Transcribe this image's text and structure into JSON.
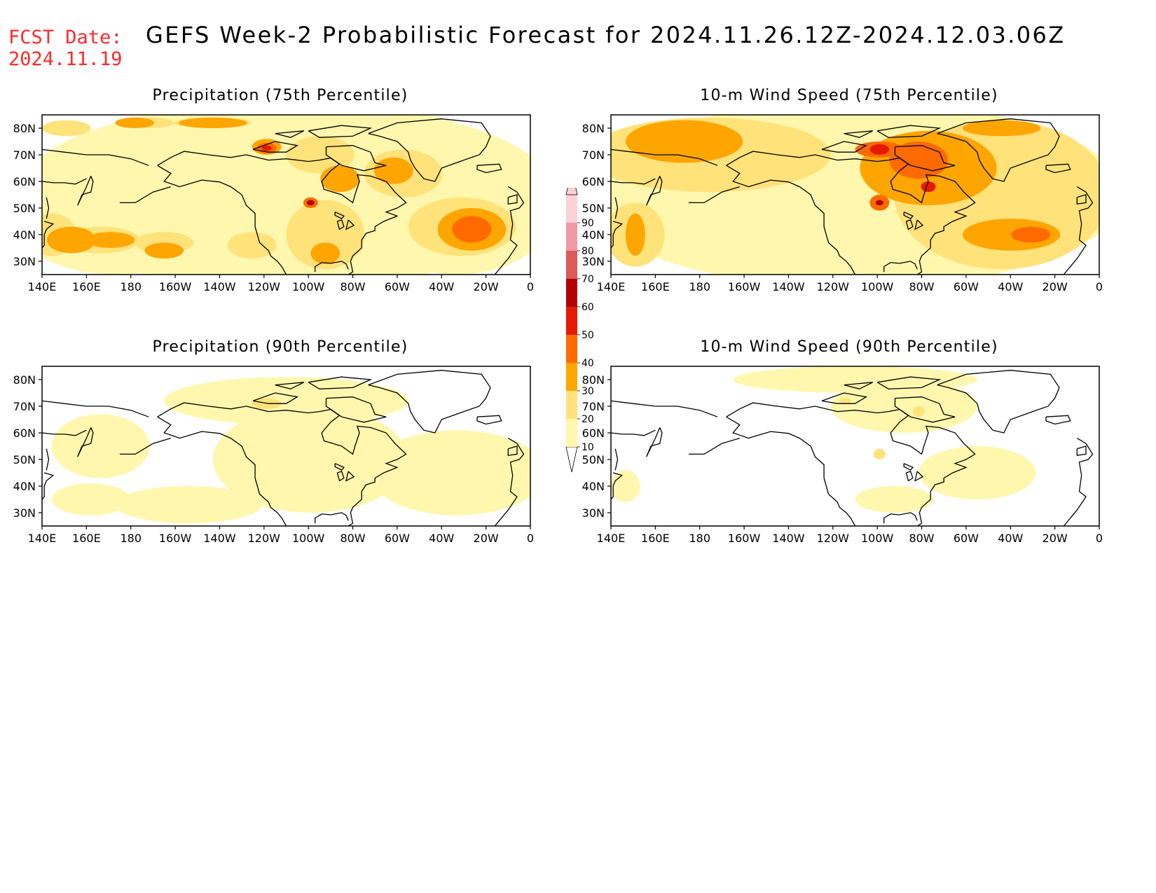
{
  "forecast_date": {
    "label": "FCST Date:",
    "value": "2024.11.19"
  },
  "title": "GEFS Week-2 Probabilistic Forecast for 2024.11.26.12Z-2024.12.03.06Z",
  "colors": {
    "c10": "#fff7ad",
    "c20": "#ffe27a",
    "c30": "#ffa500",
    "c40": "#ff6a00",
    "c50": "#e51a00",
    "c60": "#b30000",
    "c70": "#dc5a5a",
    "c80": "#ef9aa4",
    "c90": "#fbd1d6",
    "coast": "#000000"
  },
  "colorbar": {
    "levels": [
      "10",
      "20",
      "30",
      "40",
      "50",
      "60",
      "70",
      "80",
      "90"
    ]
  },
  "panels": [
    {
      "id": "precip75",
      "title": "Precipitation (75th Percentile)"
    },
    {
      "id": "wind75",
      "title": "10-m Wind Speed (75th Percentile)"
    },
    {
      "id": "precip90",
      "title": "Precipitation (90th Percentile)"
    },
    {
      "id": "wind90",
      "title": "10-m Wind Speed (90th Percentile)"
    }
  ],
  "axes": {
    "lat_labels": [
      "80N",
      "70N",
      "60N",
      "50N",
      "40N",
      "30N"
    ],
    "lon_labels": [
      "140E",
      "160E",
      "180",
      "160W",
      "140W",
      "120W",
      "100W",
      "80W",
      "60W",
      "40W",
      "20W",
      "0"
    ],
    "lon_range": [
      "140E",
      "0"
    ],
    "lat_range": [
      "25N",
      "85N"
    ]
  }
}
